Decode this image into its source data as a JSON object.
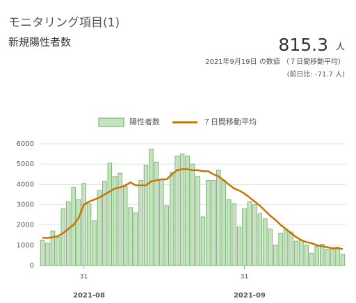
{
  "chart_data": {
    "type": "bar",
    "title": "モニタリング項目(1)",
    "subtitle": "新規陽性者数",
    "headline_value": 815.3,
    "headline_unit": "人",
    "note": "2021年9月19日 の数値 （７日間移動平均）",
    "change": "(前日比: -71.7 人)",
    "categories": [
      null,
      null,
      null,
      null,
      null,
      null,
      null,
      null,
      "31",
      null,
      null,
      null,
      null,
      null,
      null,
      null,
      null,
      null,
      null,
      null,
      null,
      null,
      null,
      null,
      null,
      null,
      null,
      null,
      null,
      null,
      null,
      null,
      null,
      null,
      null,
      null,
      null,
      null,
      null,
      "31",
      null,
      null,
      null,
      null,
      null,
      null,
      null,
      null,
      null,
      null,
      null,
      null,
      null,
      null,
      null,
      null,
      null,
      null,
      null
    ],
    "month_labels": [
      null,
      null,
      null,
      null,
      null,
      null,
      null,
      null,
      null,
      "2021-08",
      null,
      null,
      null,
      null,
      null,
      null,
      null,
      null,
      null,
      null,
      null,
      null,
      null,
      null,
      null,
      null,
      null,
      null,
      null,
      null,
      null,
      null,
      null,
      null,
      null,
      null,
      null,
      null,
      null,
      null,
      "2021-09",
      null,
      null,
      null,
      null,
      null,
      null,
      null,
      null,
      null,
      null,
      null,
      null,
      null,
      null,
      null,
      null,
      null,
      null
    ],
    "series": [
      {
        "name": "陽性者数",
        "type": "bar",
        "color": "#c6e3c0",
        "values": [
          1250,
          1100,
          1700,
          1400,
          2800,
          3150,
          3850,
          3250,
          4050,
          3050,
          2200,
          3700,
          4150,
          5050,
          4400,
          4550,
          3900,
          2850,
          2600,
          4200,
          4950,
          5750,
          5100,
          4250,
          2950,
          4600,
          5400,
          5500,
          5400,
          5000,
          4400,
          2400,
          4200,
          4200,
          4700,
          4200,
          3250,
          3050,
          1900,
          2800,
          3150,
          3000,
          2550,
          2300,
          1800,
          1000,
          1600,
          1800,
          1650,
          1200,
          1250,
          1000,
          600,
          950,
          1050,
          800,
          800,
          900,
          550
        ]
      },
      {
        "name": "７日間移動平均",
        "type": "line",
        "color": "#c87500",
        "values": [
          1370,
          1350,
          1400,
          1450,
          1600,
          1800,
          2000,
          2350,
          3000,
          3150,
          3250,
          3350,
          3500,
          3650,
          3800,
          3850,
          3950,
          4100,
          3950,
          3950,
          3950,
          4150,
          4200,
          4250,
          4250,
          4500,
          4700,
          4750,
          4750,
          4700,
          4700,
          4650,
          4650,
          4500,
          4400,
          4200,
          4000,
          3800,
          3700,
          3550,
          3350,
          3150,
          2950,
          2700,
          2450,
          2250,
          2000,
          1800,
          1600,
          1400,
          1250,
          1150,
          1100,
          1000,
          950,
          900,
          850,
          850,
          815.3
        ]
      }
    ],
    "ylim": [
      0,
      6000
    ],
    "yticks": [
      0,
      1000,
      2000,
      3000,
      4000,
      5000,
      6000
    ],
    "grid": true
  }
}
